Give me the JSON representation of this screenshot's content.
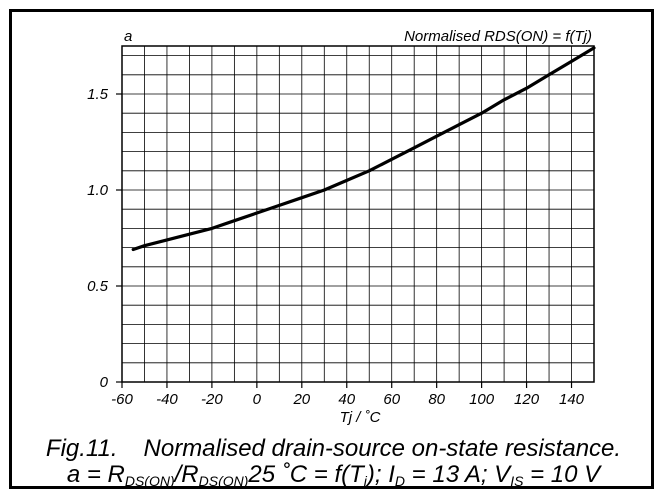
{
  "chart_data": {
    "type": "line",
    "title": "Normalised RDS(ON) = f(Tj)",
    "ylabel": "a",
    "xlabel": "Tj / ˚C",
    "xlim": [
      -60,
      150
    ],
    "ylim": [
      0,
      1.75
    ],
    "x_major_ticks": [
      -60,
      -40,
      -20,
      0,
      20,
      40,
      60,
      80,
      100,
      120,
      140
    ],
    "x_tick_labels": [
      "-60",
      "-40",
      "-20",
      "0",
      "20",
      "40",
      "60",
      "80",
      "100",
      "120",
      "140"
    ],
    "y_major_ticks": [
      0,
      0.5,
      1.0,
      1.5
    ],
    "y_tick_labels": [
      "0",
      "0.5",
      "1.0",
      "1.5"
    ],
    "grid": true,
    "series": [
      {
        "x": [
          -55,
          -50,
          -40,
          -30,
          -20,
          -10,
          0,
          10,
          20,
          30,
          40,
          50,
          60,
          70,
          80,
          90,
          100,
          110,
          120,
          130,
          140,
          150
        ],
        "y": [
          0.69,
          0.71,
          0.74,
          0.77,
          0.8,
          0.84,
          0.88,
          0.92,
          0.96,
          1.0,
          1.05,
          1.1,
          1.16,
          1.22,
          1.28,
          1.34,
          1.4,
          1.47,
          1.53,
          1.6,
          1.67,
          1.74
        ],
        "color": "#000000"
      }
    ]
  },
  "caption": {
    "fig_label": "Fig.11.",
    "line1_text": "Normalised drain-source on-state resistance.",
    "line2": {
      "p1": "a = R",
      "sub1": "DS(ON)",
      "p2": "/R",
      "sub2": "DS(ON)",
      "p3": "25 ˚C = f(T",
      "sub3": "j",
      "p4": "); I",
      "sub4": "D",
      "p5": " = 13 A; V",
      "sub5": "IS",
      "p6": " = 10 V"
    }
  }
}
